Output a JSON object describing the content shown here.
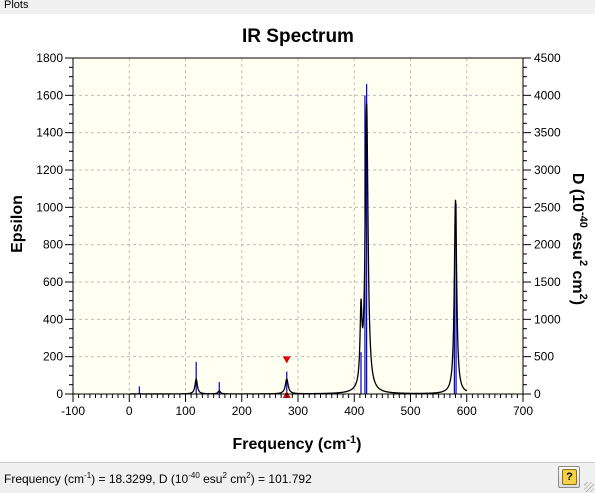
{
  "window": {
    "panel_title": "Plots"
  },
  "chart_data": {
    "type": "line",
    "title": "IR Spectrum",
    "xlabel": "Frequency (cm",
    "xlabel_sup": "-1",
    "xlabel_end": ")",
    "ylabel_left": "Epsilon",
    "ylabel_right_parts": [
      "D (10",
      "-40",
      " esu",
      "2",
      " cm",
      "2",
      ")"
    ],
    "xlim": [
      -100,
      700
    ],
    "ylim_left": [
      0,
      1800
    ],
    "ylim_right": [
      0,
      4500
    ],
    "x_ticks": [
      -100,
      0,
      100,
      200,
      300,
      400,
      500,
      600,
      700
    ],
    "y_ticks_left": [
      0,
      200,
      400,
      600,
      800,
      1000,
      1200,
      1400,
      1600,
      1800
    ],
    "y_ticks_right": [
      0,
      500,
      1000,
      1500,
      2000,
      2500,
      3000,
      3500,
      4000,
      4500
    ],
    "grid": true,
    "curve_range": [
      0,
      600
    ],
    "peaks": [
      {
        "freq": 18,
        "epsilon": 2,
        "width": 4
      },
      {
        "freq": 119,
        "epsilon": 80,
        "width": 5
      },
      {
        "freq": 160,
        "epsilon": 16,
        "width": 5
      },
      {
        "freq": 280,
        "epsilon": 80,
        "width": 6
      },
      {
        "freq": 412,
        "epsilon": 380,
        "width": 4
      },
      {
        "freq": 422,
        "epsilon": 1540,
        "width": 6
      },
      {
        "freq": 580,
        "epsilon": 1040,
        "width": 5
      }
    ],
    "stick_series": {
      "name": "D",
      "x": [
        18,
        119,
        160,
        280,
        412,
        419,
        422,
        578,
        581
      ],
      "y": [
        101.792,
        430,
        160,
        300,
        560,
        4000,
        4150,
        1550,
        2550
      ]
    },
    "marker": {
      "freq": 280,
      "epsilon_top": 175,
      "epsilon_bottom": 0
    },
    "colors": {
      "curve": "#000000",
      "sticks": "#0000c8",
      "marker": "#e00000",
      "plot_bg": "#fffff2",
      "grid": "#bdbdbd"
    }
  },
  "status": {
    "freq_label": "Frequency (cm",
    "freq_sup": "-1",
    "freq_mid": ") = 18.3299, D (10",
    "d_sup": "-40",
    "d_mid": " esu",
    "esu_sup": "2",
    "cm_part": " cm",
    "cm_sup": "2",
    "value": ") = 101.792"
  },
  "help": {
    "icon": "help-icon",
    "glyph": "?"
  }
}
